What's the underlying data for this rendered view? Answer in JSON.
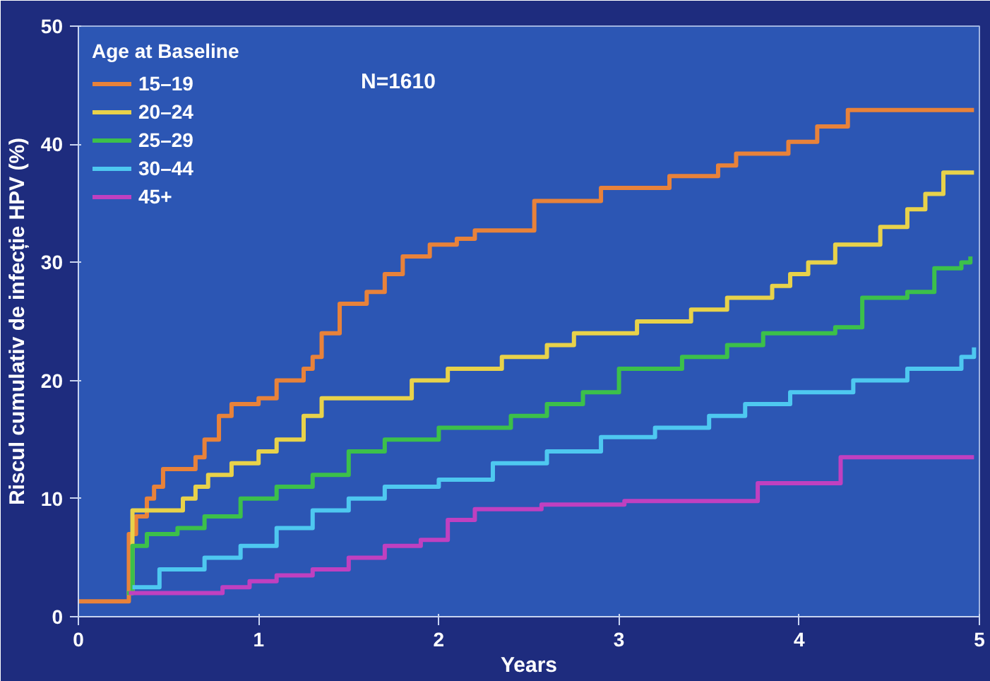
{
  "chart_data": {
    "type": "step",
    "xlabel": "Years",
    "ylabel": "Riscul cumulativ de infecție HPV (%)",
    "legend_title": "Age at Baseline",
    "legend": "top left",
    "grid": false,
    "xlim": [
      0,
      5
    ],
    "ylim": [
      0,
      50
    ],
    "xticks": [
      0,
      1,
      2,
      3,
      4,
      5
    ],
    "yticks": [
      0,
      10,
      20,
      30,
      40,
      50
    ],
    "annotations": [
      "N=1610"
    ],
    "series": [
      {
        "name": "15–19",
        "color": "#e8823a",
        "x": [
          0,
          0.25,
          0.28,
          0.32,
          0.38,
          0.42,
          0.47,
          0.62,
          0.65,
          0.7,
          0.78,
          0.85,
          1.0,
          1.1,
          1.25,
          1.3,
          1.35,
          1.45,
          1.6,
          1.7,
          1.8,
          1.95,
          2.1,
          2.2,
          2.53,
          2.9,
          3.28,
          3.55,
          3.65,
          3.94,
          4.1,
          4.27,
          4.97
        ],
        "values": [
          1.3,
          1.3,
          7,
          8.5,
          10,
          11,
          12.5,
          12.5,
          13.5,
          15,
          17,
          18,
          18.5,
          20,
          21,
          22,
          24,
          26.5,
          27.5,
          29,
          30.5,
          31.5,
          32,
          32.7,
          35.2,
          36.3,
          37.3,
          38.2,
          39.2,
          40.2,
          41.5,
          42.9,
          42.9
        ]
      },
      {
        "name": "20–24",
        "color": "#e8d24a",
        "x": [
          0.27,
          0.3,
          0.55,
          0.58,
          0.65,
          0.72,
          0.85,
          1.0,
          1.1,
          1.25,
          1.35,
          1.8,
          1.85,
          2.05,
          2.35,
          2.6,
          2.75,
          3.1,
          3.4,
          3.6,
          3.85,
          3.95,
          4.05,
          4.2,
          4.45,
          4.6,
          4.7,
          4.8,
          4.97
        ],
        "values": [
          2,
          9,
          9,
          10,
          11,
          12,
          13,
          14,
          15,
          17,
          18.5,
          18.5,
          20,
          21,
          22,
          23,
          24,
          25,
          26,
          27,
          28,
          29,
          30,
          31.5,
          33,
          34.5,
          35.8,
          37.6,
          37.6
        ]
      },
      {
        "name": "25–29",
        "color": "#3cc04a",
        "x": [
          0.27,
          0.3,
          0.38,
          0.55,
          0.7,
          0.9,
          1.1,
          1.3,
          1.5,
          1.7,
          2.0,
          2.4,
          2.6,
          2.8,
          3.0,
          3.35,
          3.6,
          3.8,
          4.2,
          4.35,
          4.6,
          4.75,
          4.9,
          4.95
        ],
        "values": [
          2,
          6,
          7,
          7.5,
          8.5,
          10,
          11,
          12,
          14,
          15,
          16,
          17,
          18,
          19,
          21,
          22,
          23,
          24,
          24.5,
          27,
          27.5,
          29.5,
          30,
          30.5
        ]
      },
      {
        "name": "30–44",
        "color": "#4ec8f0",
        "x": [
          0.3,
          0.45,
          0.7,
          0.9,
          1.1,
          1.3,
          1.5,
          1.7,
          2.0,
          2.3,
          2.6,
          2.9,
          3.2,
          3.5,
          3.7,
          3.95,
          4.3,
          4.6,
          4.9,
          4.97
        ],
        "values": [
          2.5,
          4,
          5,
          6,
          7.5,
          9,
          10,
          11,
          11.6,
          13,
          14,
          15.2,
          16,
          17,
          18,
          19,
          20,
          21,
          22,
          22.8
        ]
      },
      {
        "name": "45+",
        "color": "#c040c0",
        "x": [
          0.28,
          0.8,
          0.95,
          1.1,
          1.3,
          1.5,
          1.7,
          1.9,
          2.0,
          2.05,
          2.2,
          2.57,
          3.03,
          3.77,
          4.23,
          4.97
        ],
        "values": [
          2,
          2.5,
          3,
          3.5,
          4,
          5,
          6,
          6.5,
          6.5,
          8.2,
          9.1,
          9.5,
          9.8,
          11.3,
          13.5,
          13.5
        ]
      }
    ]
  }
}
